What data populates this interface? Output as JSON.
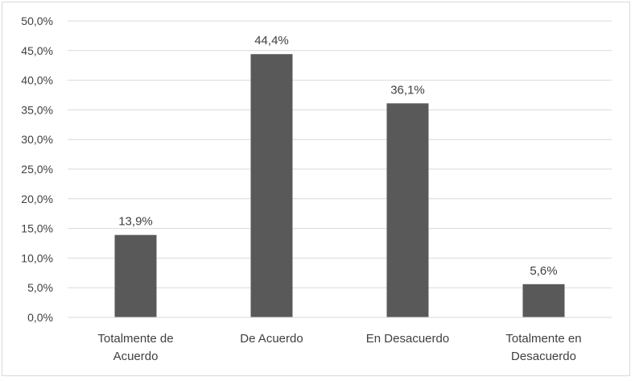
{
  "chart_data": {
    "type": "bar",
    "categories": [
      [
        "Totalmente de",
        "Acuerdo"
      ],
      [
        "De Acuerdo"
      ],
      [
        "En Desacuerdo"
      ],
      [
        "Totalmente en",
        "Desacuerdo"
      ]
    ],
    "values": [
      13.9,
      44.4,
      36.1,
      5.6
    ],
    "data_labels": [
      "13,9%",
      "44,4%",
      "36,1%",
      "5,6%"
    ],
    "yticks": [
      "0,0%",
      "5,0%",
      "10,0%",
      "15,0%",
      "20,0%",
      "25,0%",
      "30,0%",
      "35,0%",
      "40,0%",
      "45,0%",
      "50,0%"
    ],
    "ylim": [
      0,
      50
    ],
    "title": "",
    "xlabel": "",
    "ylabel": "",
    "grid": true,
    "legend": "none",
    "bar_color": "#595959",
    "grid_color": "#d9d9d9",
    "text_color": "#404040"
  }
}
